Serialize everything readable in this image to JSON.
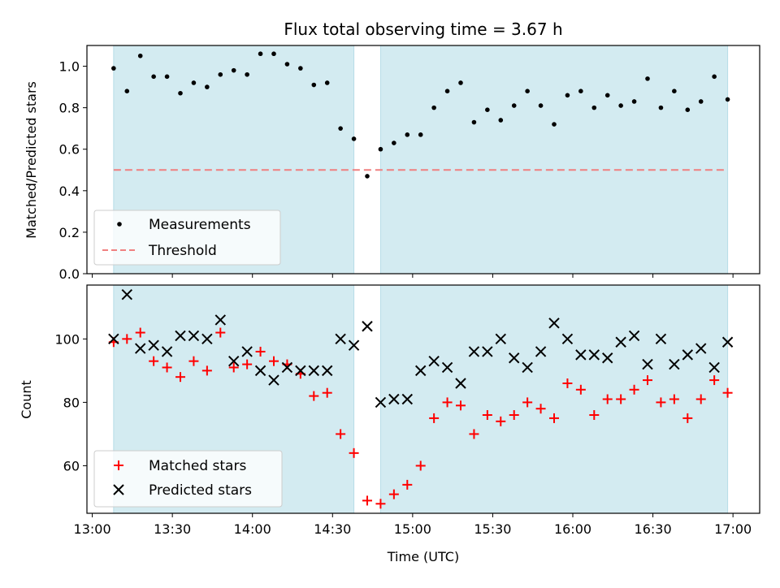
{
  "title": "Flux total observing time = 3.67 h",
  "xlabel": "Time (UTC)",
  "x_ticks": [
    "13:00",
    "13:30",
    "14:00",
    "14:30",
    "15:00",
    "15:30",
    "16:00",
    "16:30",
    "17:00"
  ],
  "colors": {
    "shade": "#d3ebf1",
    "measurement": "#000000",
    "threshold": "#f08080",
    "matched": "#ff0000",
    "predicted": "#000000"
  },
  "chart_data": [
    {
      "type": "scatter",
      "ylabel": "Matched/Predicted stars",
      "ylim": [
        0,
        1.1
      ],
      "y_ticks": [
        "0.0",
        "0.2",
        "0.4",
        "0.6",
        "0.8",
        "1.0"
      ],
      "xlim": [
        "12:58",
        "17:10"
      ],
      "shaded_intervals": [
        [
          "13:08",
          "14:38"
        ],
        [
          "14:48",
          "16:58"
        ]
      ],
      "legend": {
        "placement": "lower-left",
        "entries": [
          "Measurements",
          "Threshold"
        ]
      },
      "threshold": {
        "name": "Threshold",
        "y": 0.5,
        "x_range": [
          "13:08",
          "16:58"
        ]
      },
      "series": [
        {
          "name": "Measurements",
          "x": [
            "13:08",
            "13:13",
            "13:18",
            "13:23",
            "13:28",
            "13:33",
            "13:38",
            "13:43",
            "13:48",
            "13:53",
            "13:58",
            "14:03",
            "14:08",
            "14:13",
            "14:18",
            "14:23",
            "14:28",
            "14:33",
            "14:38",
            "14:43",
            "14:48",
            "14:53",
            "14:58",
            "15:03",
            "15:08",
            "15:13",
            "15:18",
            "15:23",
            "15:28",
            "15:33",
            "15:38",
            "15:43",
            "15:48",
            "15:53",
            "15:58",
            "16:03",
            "16:08",
            "16:13",
            "16:18",
            "16:23",
            "16:28",
            "16:33",
            "16:38",
            "16:43",
            "16:48",
            "16:53",
            "16:58"
          ],
          "y": [
            0.99,
            0.88,
            1.05,
            0.95,
            0.95,
            0.87,
            0.92,
            0.9,
            0.96,
            0.98,
            0.96,
            1.06,
            1.06,
            1.01,
            0.99,
            0.91,
            0.92,
            0.7,
            0.65,
            0.47,
            0.6,
            0.63,
            0.67,
            0.67,
            0.8,
            0.88,
            0.92,
            0.73,
            0.79,
            0.74,
            0.81,
            0.88,
            0.81,
            0.72,
            0.86,
            0.88,
            0.8,
            0.86,
            0.81,
            0.83,
            0.94,
            0.8,
            0.88,
            0.79,
            0.83,
            0.95,
            0.84
          ]
        }
      ]
    },
    {
      "type": "scatter",
      "ylabel": "Count",
      "ylim": [
        45,
        117
      ],
      "y_ticks": [
        "60",
        "80",
        "100"
      ],
      "xlim": [
        "12:58",
        "17:10"
      ],
      "shaded_intervals": [
        [
          "13:08",
          "14:38"
        ],
        [
          "14:48",
          "16:58"
        ]
      ],
      "legend": {
        "placement": "lower-left",
        "entries": [
          "Matched stars",
          "Predicted stars"
        ]
      },
      "series": [
        {
          "name": "Matched stars",
          "x": [
            "13:08",
            "13:13",
            "13:18",
            "13:23",
            "13:28",
            "13:33",
            "13:38",
            "13:43",
            "13:48",
            "13:53",
            "13:58",
            "14:03",
            "14:08",
            "14:13",
            "14:18",
            "14:23",
            "14:28",
            "14:33",
            "14:38",
            "14:43",
            "14:48",
            "14:53",
            "14:58",
            "15:03",
            "15:08",
            "15:13",
            "15:18",
            "15:23",
            "15:28",
            "15:33",
            "15:38",
            "15:43",
            "15:48",
            "15:53",
            "15:58",
            "16:03",
            "16:08",
            "16:13",
            "16:18",
            "16:23",
            "16:28",
            "16:33",
            "16:38",
            "16:43",
            "16:48",
            "16:53",
            "16:58"
          ],
          "y": [
            99,
            100,
            102,
            93,
            91,
            88,
            93,
            90,
            102,
            91,
            92,
            96,
            93,
            92,
            89,
            82,
            83,
            70,
            64,
            49,
            48,
            51,
            54,
            60,
            75,
            80,
            79,
            70,
            76,
            74,
            76,
            80,
            78,
            75,
            86,
            84,
            76,
            81,
            81,
            84,
            87,
            80,
            81,
            75,
            81,
            87,
            83
          ]
        },
        {
          "name": "Predicted stars",
          "x": [
            "13:08",
            "13:13",
            "13:18",
            "13:23",
            "13:28",
            "13:33",
            "13:38",
            "13:43",
            "13:48",
            "13:53",
            "13:58",
            "14:03",
            "14:08",
            "14:13",
            "14:18",
            "14:23",
            "14:28",
            "14:33",
            "14:38",
            "14:43",
            "14:48",
            "14:53",
            "14:58",
            "15:03",
            "15:08",
            "15:13",
            "15:18",
            "15:23",
            "15:28",
            "15:33",
            "15:38",
            "15:43",
            "15:48",
            "15:53",
            "15:58",
            "16:03",
            "16:08",
            "16:13",
            "16:18",
            "16:23",
            "16:28",
            "16:33",
            "16:38",
            "16:43",
            "16:48",
            "16:53",
            "16:58"
          ],
          "y": [
            100,
            114,
            97,
            98,
            96,
            101,
            101,
            100,
            106,
            93,
            96,
            90,
            87,
            91,
            90,
            90,
            90,
            100,
            98,
            104,
            80,
            81,
            81,
            90,
            93,
            91,
            86,
            96,
            96,
            100,
            94,
            91,
            96,
            105,
            100,
            95,
            95,
            94,
            99,
            101,
            92,
            100,
            92,
            95,
            97,
            91,
            99
          ]
        }
      ]
    }
  ]
}
